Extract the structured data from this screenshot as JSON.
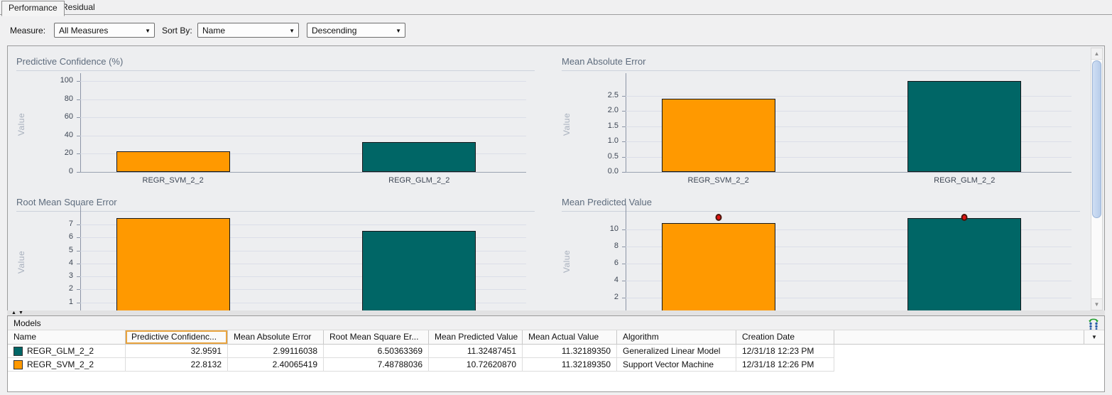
{
  "tabs": [
    {
      "label": "Performance",
      "active": true
    },
    {
      "label": "Residual",
      "active": false
    }
  ],
  "toolbar": {
    "measure_label": "Measure:",
    "measure_value": "All Measures",
    "sort_by_label": "Sort By:",
    "sort_value": "Name",
    "direction_value": "Descending"
  },
  "icons": {
    "dropdown_arrow": "▼",
    "splitter_up": "▲",
    "splitter_down": "▼",
    "scroll_up": "▲",
    "scroll_down": "▼",
    "column_chooser_arrow": "▼"
  },
  "chart_data": [
    {
      "type": "bar",
      "title": "Predictive Confidence (%)",
      "ylabel": "Value",
      "categories": [
        "REGR_SVM_2_2",
        "REGR_GLM_2_2"
      ],
      "values": [
        22.8132,
        32.9591
      ],
      "colors": [
        "#FF9900",
        "#006666"
      ],
      "yticks": [
        {
          "v": 0,
          "label": "0"
        },
        {
          "v": 20,
          "label": "20"
        },
        {
          "v": 40,
          "label": "40"
        },
        {
          "v": 60,
          "label": "60"
        },
        {
          "v": 80,
          "label": "80"
        },
        {
          "v": 100,
          "label": "100"
        }
      ],
      "ylim": [
        0,
        105
      ],
      "show_x_labels": true,
      "grid": true,
      "legend": "none"
    },
    {
      "type": "bar",
      "title": "Mean Absolute Error",
      "ylabel": "Value",
      "categories": [
        "REGR_SVM_2_2",
        "REGR_GLM_2_2"
      ],
      "values": [
        2.40065419,
        2.99116038
      ],
      "colors": [
        "#FF9900",
        "#006666"
      ],
      "yticks": [
        {
          "v": 0,
          "label": "0.0"
        },
        {
          "v": 0.5,
          "label": "0.5"
        },
        {
          "v": 1,
          "label": "1.0"
        },
        {
          "v": 1.5,
          "label": "1.5"
        },
        {
          "v": 2,
          "label": "2.0"
        },
        {
          "v": 2.5,
          "label": "2.5"
        }
      ],
      "ylim": [
        0,
        3.13
      ],
      "show_x_labels": true,
      "grid": true,
      "legend": "none"
    },
    {
      "type": "bar",
      "title": "Root Mean Square Error",
      "ylabel": "Value",
      "categories": [
        "REGR_SVM_2_2",
        "REGR_GLM_2_2"
      ],
      "values": [
        7.48788036,
        6.50363369
      ],
      "colors": [
        "#FF9900",
        "#006666"
      ],
      "yticks": [
        {
          "v": 1,
          "label": "1"
        },
        {
          "v": 2,
          "label": "2"
        },
        {
          "v": 3,
          "label": "3"
        },
        {
          "v": 4,
          "label": "4"
        },
        {
          "v": 5,
          "label": "5"
        },
        {
          "v": 6,
          "label": "6"
        },
        {
          "v": 7,
          "label": "7"
        }
      ],
      "ylim": [
        0,
        8.2
      ],
      "show_x_labels": false,
      "grid": true,
      "legend": "none",
      "clipped_bottom": true
    },
    {
      "type": "bar",
      "title": "Mean Predicted Value",
      "ylabel": "Value",
      "categories": [
        "REGR_SVM_2_2",
        "REGR_GLM_2_2"
      ],
      "values": [
        10.7262087,
        11.32487451
      ],
      "actual_value_markers": [
        11.3218935,
        11.3218935
      ],
      "marker_color": "#DF1413",
      "colors": [
        "#FF9900",
        "#006666"
      ],
      "yticks": [
        {
          "v": 2,
          "label": "2"
        },
        {
          "v": 4,
          "label": "4"
        },
        {
          "v": 6,
          "label": "6"
        },
        {
          "v": 8,
          "label": "8"
        },
        {
          "v": 10,
          "label": "10"
        }
      ],
      "ylim": [
        0,
        12.5
      ],
      "show_x_labels": false,
      "grid": true,
      "legend": "none",
      "clipped_bottom": true
    }
  ],
  "models_table": {
    "panel_title": "Models",
    "columns": [
      {
        "key": "name",
        "label": "Name",
        "align": "left",
        "highlight": false
      },
      {
        "key": "predictive-confidence",
        "label": "Predictive Confidenc...",
        "align": "right",
        "highlight": true
      },
      {
        "key": "mean-absolute-error",
        "label": "Mean Absolute Error",
        "align": "right",
        "highlight": false
      },
      {
        "key": "root-mean-square-error",
        "label": "Root Mean Square Er...",
        "align": "right",
        "highlight": false
      },
      {
        "key": "mean-predicted-value",
        "label": "Mean Predicted Value",
        "align": "right",
        "highlight": false
      },
      {
        "key": "mean-actual-value",
        "label": "Mean Actual Value",
        "align": "right",
        "highlight": false
      },
      {
        "key": "algorithm",
        "label": "Algorithm",
        "align": "left",
        "highlight": false
      },
      {
        "key": "creation-date",
        "label": "Creation Date",
        "align": "left",
        "highlight": false
      }
    ],
    "rows": [
      {
        "swatch": "#006666",
        "cells": [
          "REGR_GLM_2_2",
          "32.9591",
          "2.99116038",
          "6.50363369",
          "11.32487451",
          "11.32189350",
          "Generalized Linear Model",
          "12/31/18 12:23 PM"
        ]
      },
      {
        "swatch": "#FF9900",
        "cells": [
          "REGR_SVM_2_2",
          "22.8132",
          "2.40065419",
          "7.48788036",
          "10.72620870",
          "11.32189350",
          "Support Vector Machine",
          "12/31/18 12:26 PM"
        ]
      }
    ]
  },
  "colors": {
    "svm_series": "#FF9900",
    "glm_series": "#006666",
    "actual_marker": "#DF1413",
    "chart_title": "#5E6C7D",
    "panel_background": "#EDEEF0"
  }
}
